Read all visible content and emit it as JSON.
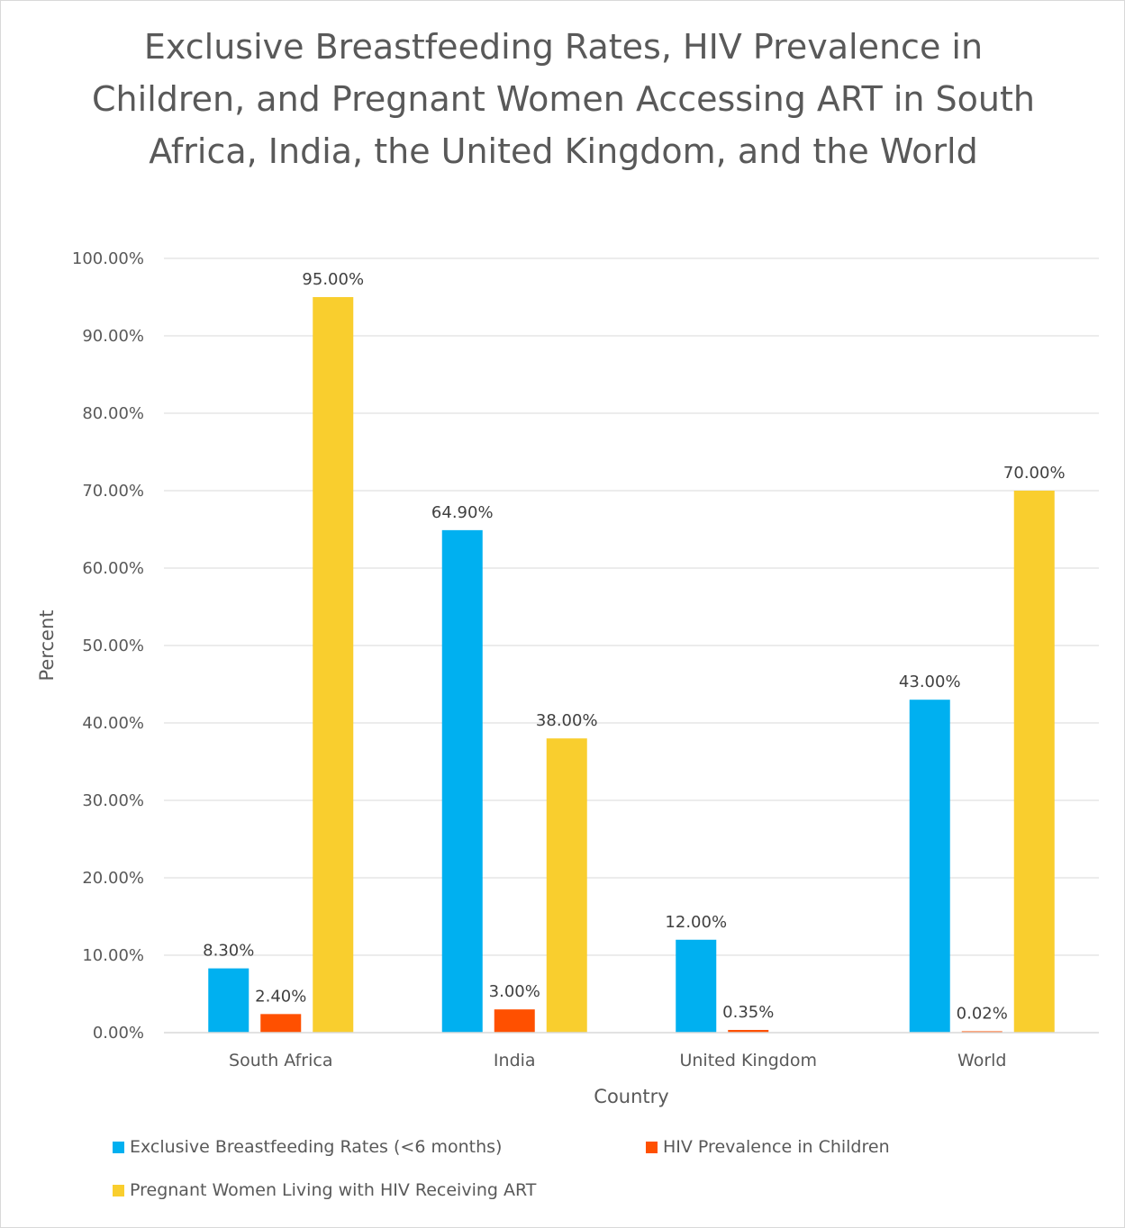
{
  "colors": {
    "series1": "#00B0F0",
    "series2": "#FF5000",
    "series3": "#F9CE2E",
    "gridline": "#D9D9D9",
    "text": "#595959"
  },
  "chart_data": {
    "type": "bar",
    "title": "Exclusive Breastfeeding Rates, HIV Prevalence in Children, and Pregnant Women Accessing ART in South Africa, India, the United Kingdom, and the World",
    "xlabel": "Country",
    "ylabel": "Percent",
    "ylim": [
      0,
      100
    ],
    "y_ticks": [
      "0.00%",
      "10.00%",
      "20.00%",
      "30.00%",
      "40.00%",
      "50.00%",
      "60.00%",
      "70.00%",
      "80.00%",
      "90.00%",
      "100.00%"
    ],
    "categories": [
      "South Africa",
      "India",
      "United Kingdom",
      "World"
    ],
    "grid": true,
    "legend_position": "bottom",
    "series": [
      {
        "name": "Exclusive Breastfeeding Rates (<6 months)",
        "values": [
          8.3,
          64.9,
          12.0,
          43.0
        ],
        "labels": [
          "8.30%",
          "64.90%",
          "12.00%",
          "43.00%"
        ]
      },
      {
        "name": "HIV Prevalence in Children",
        "values": [
          2.4,
          3.0,
          0.35,
          0.02
        ],
        "labels": [
          "2.40%",
          "3.00%",
          "0.35%",
          "0.02%"
        ]
      },
      {
        "name": "Pregnant Women Living with HIV Receiving ART",
        "values": [
          95.0,
          38.0,
          null,
          70.0
        ],
        "labels": [
          "95.00%",
          "38.00%",
          null,
          "70.00%"
        ]
      }
    ]
  }
}
